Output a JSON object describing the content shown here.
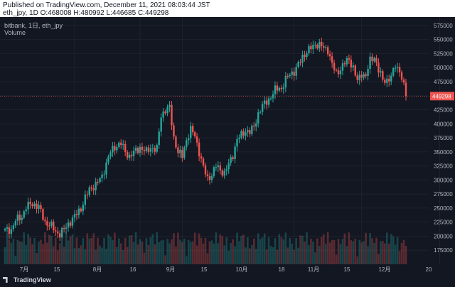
{
  "header": {
    "published": "Published on TradingView.com, December 11, 2021 08:03:44 JST",
    "ohlc": "eth_jpy, 1D O:468008 H:480992 L:446685 C:449298"
  },
  "legend": {
    "symbol": "bitbank, 1日, eth_jpy",
    "volume": "Volume"
  },
  "footer": {
    "logo": "TradingView"
  },
  "colors": {
    "up": "#26a69a",
    "down": "#ef5350",
    "bg": "#131722",
    "grid": "#1e222d",
    "text": "#b2b5be"
  },
  "chart_data": {
    "type": "candlestick",
    "title": "",
    "ylim": [
      150000,
      590000
    ],
    "y_ticks": [
      175000,
      200000,
      225000,
      250000,
      275000,
      300000,
      325000,
      350000,
      375000,
      400000,
      425000,
      450000,
      475000,
      500000,
      525000,
      550000,
      575000
    ],
    "x_ticks": [
      "7月",
      "15",
      "8月",
      "16",
      "9月",
      "15",
      "10月",
      "18",
      "11月",
      "15",
      "12月",
      "20"
    ],
    "last_price": "449298",
    "anchors": [
      [
        0,
        210000
      ],
      [
        3,
        212000
      ],
      [
        5,
        228000
      ],
      [
        8,
        235000
      ],
      [
        10,
        252000
      ],
      [
        13,
        258000
      ],
      [
        16,
        252000
      ],
      [
        19,
        225000
      ],
      [
        22,
        218000
      ],
      [
        24,
        208000
      ],
      [
        26,
        204000
      ],
      [
        28,
        212000
      ],
      [
        30,
        222000
      ],
      [
        33,
        235000
      ],
      [
        36,
        250000
      ],
      [
        38,
        268000
      ],
      [
        40,
        283000
      ],
      [
        43,
        292000
      ],
      [
        46,
        306000
      ],
      [
        48,
        330000
      ],
      [
        50,
        350000
      ],
      [
        53,
        362000
      ],
      [
        55,
        365000
      ],
      [
        57,
        350000
      ],
      [
        59,
        342000
      ],
      [
        62,
        352000
      ],
      [
        64,
        358000
      ],
      [
        67,
        350000
      ],
      [
        69,
        358000
      ],
      [
        71,
        355000
      ],
      [
        72,
        355000
      ],
      [
        74,
        415000
      ],
      [
        76,
        425000
      ],
      [
        78,
        428000
      ],
      [
        80,
        375000
      ],
      [
        82,
        350000
      ],
      [
        84,
        342000
      ],
      [
        86,
        372000
      ],
      [
        88,
        390000
      ],
      [
        90,
        378000
      ],
      [
        92,
        350000
      ],
      [
        94,
        322000
      ],
      [
        96,
        302000
      ],
      [
        98,
        310000
      ],
      [
        100,
        325000
      ],
      [
        102,
        318000
      ],
      [
        104,
        312000
      ],
      [
        106,
        328000
      ],
      [
        108,
        345000
      ],
      [
        110,
        372000
      ],
      [
        112,
        380000
      ],
      [
        114,
        388000
      ],
      [
        116,
        385000
      ],
      [
        118,
        395000
      ],
      [
        120,
        418000
      ],
      [
        122,
        432000
      ],
      [
        124,
        440000
      ],
      [
        126,
        448000
      ],
      [
        128,
        460000
      ],
      [
        130,
        465000
      ],
      [
        131,
        462000
      ],
      [
        133,
        478000
      ],
      [
        135,
        490000
      ],
      [
        137,
        492000
      ],
      [
        139,
        505000
      ],
      [
        141,
        520000
      ],
      [
        143,
        528000
      ],
      [
        145,
        535000
      ],
      [
        147,
        542000
      ],
      [
        149,
        540000
      ],
      [
        151,
        535000
      ],
      [
        153,
        532000
      ],
      [
        155,
        505000
      ],
      [
        157,
        490000
      ],
      [
        159,
        498000
      ],
      [
        161,
        508000
      ],
      [
        163,
        515000
      ],
      [
        165,
        500000
      ],
      [
        167,
        475000
      ],
      [
        169,
        490000
      ],
      [
        171,
        485000
      ],
      [
        173,
        512000
      ],
      [
        175,
        520000
      ],
      [
        177,
        495000
      ],
      [
        179,
        478000
      ],
      [
        181,
        478000
      ],
      [
        183,
        482000
      ],
      [
        185,
        505000
      ],
      [
        187,
        495000
      ],
      [
        189,
        465000
      ],
      [
        190,
        449298
      ]
    ]
  }
}
